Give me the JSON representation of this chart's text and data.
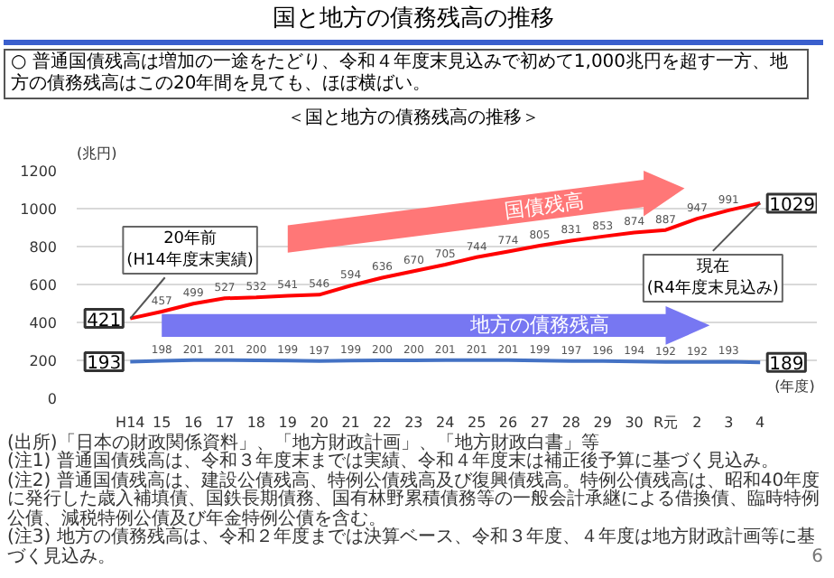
{
  "chart_data": {
    "type": "line",
    "title": "国と地方の債務残高の推移",
    "subtitle": "○ 普通国債残高は増加の一途をたどり、令和４年度末見込みで初めて1,000兆円を超す一方、地方の債務残高はこの20年間を見ても、ほぼ横ばい。",
    "ylabel": "(兆円)",
    "xlabel": "(年度)",
    "categories": [
      "H14",
      "15",
      "16",
      "17",
      "18",
      "19",
      "20",
      "21",
      "22",
      "23",
      "24",
      "25",
      "26",
      "27",
      "28",
      "29",
      "30",
      "R元",
      "2",
      "3",
      "4"
    ],
    "series": [
      {
        "name": "国債残高",
        "color": "#ff0000",
        "values": [
          421,
          457,
          499,
          527,
          532,
          541,
          546,
          594,
          636,
          670,
          705,
          744,
          774,
          805,
          831,
          853,
          874,
          887,
          947,
          991,
          1029
        ]
      },
      {
        "name": "地方の債務残高",
        "color": "#4472c4",
        "values": [
          193,
          198,
          201,
          201,
          200,
          199,
          197,
          199,
          200,
          200,
          201,
          201,
          201,
          199,
          197,
          196,
          194,
          192,
          192,
          193,
          189
        ]
      }
    ],
    "ylim": [
      0,
      1200
    ],
    "yticks": [
      0,
      200,
      400,
      600,
      800,
      1000,
      1200
    ],
    "grid": "y",
    "data_labels": true,
    "annotations": [
      "＜国と地方の債務残高の推移＞",
      {
        "text": "20年前\n(H14年度末実績)",
        "x": "H14",
        "y": 421
      },
      {
        "text": "現在\n(R4年度末見込み)",
        "x": "4",
        "y": 1029
      },
      "(出所)「日本の財政関係資料」、「地方財政計画」、「地方財政白書」等",
      "(注1) 普通国債残高は、令和３年度末までは実績、令和４年度末は補正後予算に基づく見込み。",
      "(注2) 普通国債残高は、建設公債残高、特例公債残高及び復興債残高。特例公債残高は、昭和40年度に発行した歳入補填債、国鉄長期債務、国有林野累積債務等の一般会計承継による借換債、臨時特例公債、減税特例公債及び年金特例公債を含む。",
      "(注3) 地方の債務残高は、令和２年度までは決算ベース、令和３年度、４年度は地方財政計画等に基づく見込み。",
      "6"
    ]
  }
}
